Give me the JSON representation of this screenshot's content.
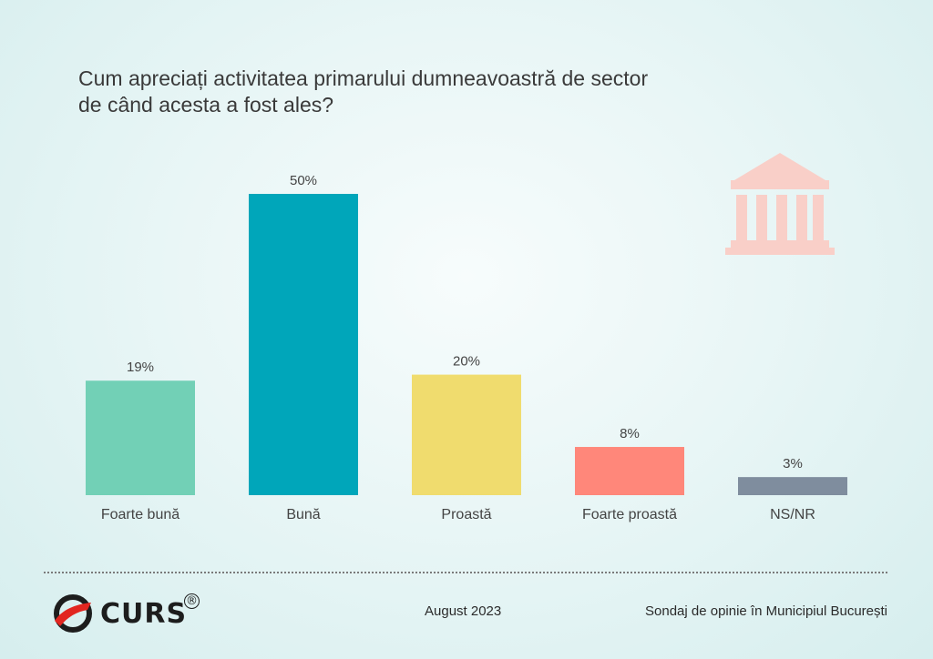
{
  "title_lines": [
    "Cum apreciați activitatea primarului dumneavoastră de sector",
    "de când acesta a fost ales?"
  ],
  "chart_data": {
    "type": "bar",
    "categories": [
      "Foarte bună",
      "Bună",
      "Proastă",
      "Foarte proastă",
      "NS/NR"
    ],
    "values": [
      19,
      50,
      20,
      8,
      3
    ],
    "value_labels": [
      "19%",
      "50%",
      "20%",
      "8%",
      "3%"
    ],
    "colors": [
      "#72d0b6",
      "#00a6ba",
      "#f0dc6e",
      "#ff877a",
      "#7f8d9e"
    ],
    "unit": "%",
    "ylim": [
      0,
      50
    ],
    "grid": false
  },
  "decoration": {
    "icon": "building-icon",
    "icon_color": "#f9cfc8"
  },
  "footer": {
    "logo_text": "CURS",
    "logo_mark": "®",
    "date": "August 2023",
    "source": "Sondaj de opinie în Municipiul București"
  }
}
